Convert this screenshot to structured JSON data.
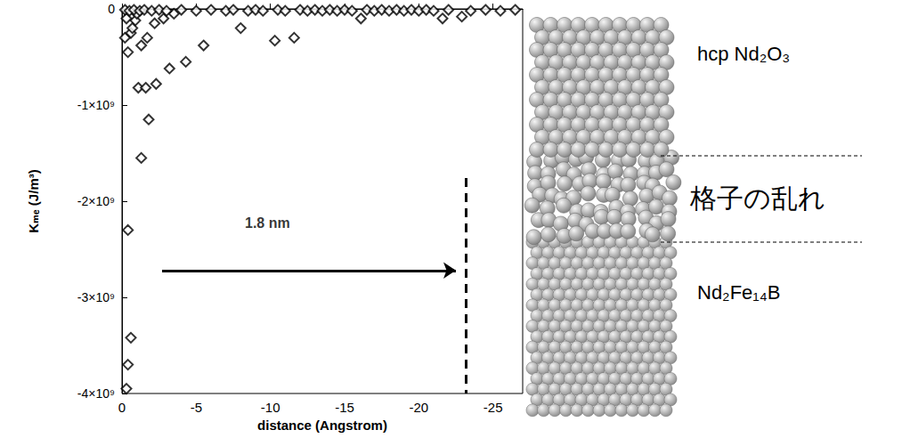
{
  "chart_data": {
    "type": "scatter",
    "x_label": "distance (Angstrom)",
    "y_label": "Kₘₑ (J/m³)",
    "xlim": [
      0,
      -27
    ],
    "xticks": [
      0,
      -5,
      -10,
      -15,
      -20,
      -25
    ],
    "ylim": [
      -4000000000.0,
      0
    ],
    "yticks": [
      {
        "value": -4000000000.0,
        "label": "-4×10⁹"
      },
      {
        "value": -3000000000.0,
        "label": "-3×10⁹"
      },
      {
        "value": -2000000000.0,
        "label": "-2×10⁹"
      },
      {
        "value": -1000000000.0,
        "label": "-1×10⁹"
      },
      0
    ],
    "grid": false,
    "marker": "open_diamond",
    "color": "#000000",
    "x": [
      -0.3,
      -0.4,
      -0.6,
      -0.4,
      -1.3,
      -1.8,
      -1.1,
      -1.6,
      -2.3,
      -3.2,
      -4.3,
      -5.5,
      -8.0,
      -10.3,
      -11.6,
      -16.1,
      -21.6,
      -22.9,
      -0.2,
      -0.4,
      -0.6,
      -0.9,
      -1.3,
      -1.7,
      -2.2,
      -2.8,
      -3.5,
      -1.0,
      -0.3,
      -0.7,
      -0.2,
      -0.5,
      -0.8,
      -1.2,
      -1.5,
      -2.0,
      -2.5,
      -3.0,
      -4.0,
      -5.0,
      -6.0,
      -7.0,
      -7.5,
      -8.5,
      -9.0,
      -9.5,
      -10.5,
      -11.0,
      -12.0,
      -12.5,
      -13.0,
      -13.5,
      -14.0,
      -14.5,
      -15.0,
      -15.5,
      -16.5,
      -17.0,
      -17.5,
      -18.0,
      -18.5,
      -19.0,
      -19.5,
      -20.0,
      -20.5,
      -21.0,
      -22.0,
      -23.5,
      -24.5,
      -25.5,
      -26.5
    ],
    "values": [
      -3950000000.0,
      -3700000000.0,
      -3420000000.0,
      -2300000000.0,
      -1550000000.0,
      -1150000000.0,
      -820000000.0,
      -820000000.0,
      -780000000.0,
      -620000000.0,
      -550000000.0,
      -380000000.0,
      -200000000.0,
      -330000000.0,
      -300000000.0,
      -100000000.0,
      -100000000.0,
      -80000000.0,
      -300000000.0,
      -450000000.0,
      -250000000.0,
      -120000000.0,
      -380000000.0,
      -300000000.0,
      -150000000.0,
      -100000000.0,
      -50000000.0,
      -50000000.0,
      -100000000.0,
      -200000000.0,
      -10000000.0,
      -20000000.0,
      -10000000.0,
      -20000000.0,
      -10000000.0,
      -20000000.0,
      -10000000.0,
      -20000000.0,
      -10000000.0,
      -20000000.0,
      -10000000.0,
      -20000000.0,
      -10000000.0,
      -20000000.0,
      -10000000.0,
      -20000000.0,
      -10000000.0,
      -20000000.0,
      -10000000.0,
      -20000000.0,
      -10000000.0,
      -20000000.0,
      -10000000.0,
      -20000000.0,
      -10000000.0,
      -20000000.0,
      -10000000.0,
      -20000000.0,
      -10000000.0,
      -20000000.0,
      -10000000.0,
      -20000000.0,
      -10000000.0,
      -20000000.0,
      -10000000.0,
      -20000000.0,
      -10000000.0,
      -20000000.0,
      -10000000.0,
      -20000000.0,
      -10000000.0
    ],
    "annotations": [
      {
        "text": "1.8 nm",
        "x": -9.8,
        "y": -2230000000.0
      }
    ],
    "arrows": [
      {
        "x": [
          -2.7,
          -22.5
        ],
        "y": -2720000000.0
      }
    ],
    "reference_lines": [
      {
        "x": -23.2,
        "y": [
          -1760000000.0,
          -4000000000.0
        ],
        "line_style": "dashed"
      }
    ],
    "diagram_labels": [
      "hcp Nd₂O₃",
      "格子の乱れ",
      "Nd₂Fe₁₄B"
    ]
  }
}
